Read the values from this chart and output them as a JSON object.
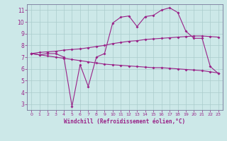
{
  "xlabel": "Windchill (Refroidissement éolien,°C)",
  "x_values": [
    0,
    1,
    2,
    3,
    4,
    5,
    6,
    7,
    8,
    9,
    10,
    11,
    12,
    13,
    14,
    15,
    16,
    17,
    18,
    19,
    20,
    21,
    22,
    23
  ],
  "line1": [
    7.3,
    7.2,
    7.3,
    7.3,
    7.0,
    2.8,
    6.35,
    4.5,
    7.0,
    7.3,
    9.9,
    10.4,
    10.5,
    9.6,
    10.45,
    10.55,
    11.0,
    11.2,
    10.8,
    9.2,
    8.6,
    8.6,
    6.2,
    5.6
  ],
  "line2": [
    7.3,
    7.4,
    7.45,
    7.5,
    7.6,
    7.65,
    7.7,
    7.8,
    7.9,
    8.0,
    8.15,
    8.25,
    8.35,
    8.4,
    8.5,
    8.55,
    8.6,
    8.65,
    8.7,
    8.75,
    8.8,
    8.8,
    8.75,
    8.7
  ],
  "line3": [
    7.3,
    7.2,
    7.1,
    7.0,
    6.9,
    6.8,
    6.7,
    6.6,
    6.5,
    6.4,
    6.35,
    6.3,
    6.25,
    6.2,
    6.15,
    6.1,
    6.1,
    6.05,
    6.0,
    5.95,
    5.9,
    5.85,
    5.75,
    5.65
  ],
  "line_color": "#992288",
  "bg_color": "#cce8e8",
  "grid_color": "#aacccc",
  "ylim": [
    2.5,
    11.5
  ],
  "xlim": [
    -0.5,
    23.5
  ],
  "yticks": [
    3,
    4,
    5,
    6,
    7,
    8,
    9,
    10,
    11
  ],
  "xticks": [
    0,
    1,
    2,
    3,
    4,
    5,
    6,
    7,
    8,
    9,
    10,
    11,
    12,
    13,
    14,
    15,
    16,
    17,
    18,
    19,
    20,
    21,
    22,
    23
  ]
}
